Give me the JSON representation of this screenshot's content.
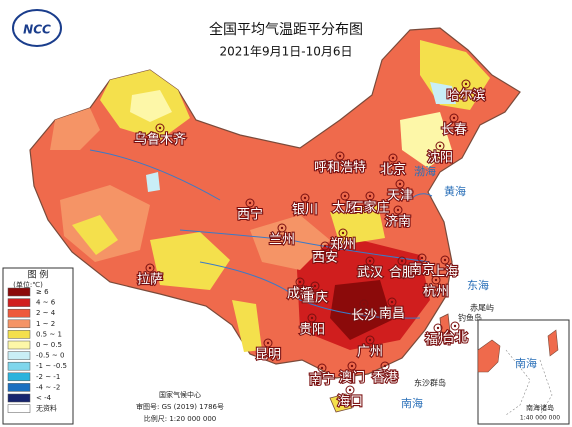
{
  "header": {
    "title": "全国平均气温距平分布图",
    "subtitle": "2021年9月1日-10月6日"
  },
  "logo": "NCC",
  "legend": {
    "title": "图 例",
    "unit": "(单位:℃)",
    "items": [
      {
        "label": "≥ 6",
        "color": "#8b0a0a"
      },
      {
        "label": "4 ~ 6",
        "color": "#d01e1e"
      },
      {
        "label": "2 ~ 4",
        "color": "#ee5a3c"
      },
      {
        "label": "1 ~ 2",
        "color": "#f59466"
      },
      {
        "label": "0.5 ~ 1",
        "color": "#f4e04c"
      },
      {
        "label": "0 ~ 0.5",
        "color": "#fdf7a8"
      },
      {
        "label": "-0.5 ~ 0",
        "color": "#c9eef6"
      },
      {
        "label": "-1 ~ -0.5",
        "color": "#7fd6ec"
      },
      {
        "label": "-2 ~ -1",
        "color": "#2cb3dd"
      },
      {
        "label": "-4 ~ -2",
        "color": "#1a6fc0"
      },
      {
        "label": "< -4",
        "color": "#16246e"
      },
      {
        "label": "无资料",
        "color": "#ffffff"
      }
    ]
  },
  "cities": [
    "乌鲁木齐",
    "拉萨",
    "西宁",
    "兰州",
    "银川",
    "呼和浩特",
    "北京",
    "天津",
    "太原",
    "石家庄",
    "济南",
    "郑州",
    "西安",
    "成都",
    "重庆",
    "贵阳",
    "昆明",
    "南宁",
    "海口",
    "广州",
    "澳门",
    "香港",
    "长沙",
    "南昌",
    "武汉",
    "合肥",
    "南京",
    "上海",
    "杭州",
    "福州",
    "台北",
    "哈尔滨",
    "长春",
    "沈阳"
  ],
  "seas": [
    "渤海",
    "黄海",
    "东海",
    "南海"
  ],
  "islands": [
    "东沙群岛",
    "钓鱼岛",
    "赤尾屿"
  ],
  "inset": {
    "title": "南海诸岛",
    "scale": "1:40 000 000",
    "sea": "南海"
  },
  "footer": [
    "国家气候中心",
    "审图号: GS (2019) 1786号",
    "比例尺: 1:20 000 000"
  ]
}
